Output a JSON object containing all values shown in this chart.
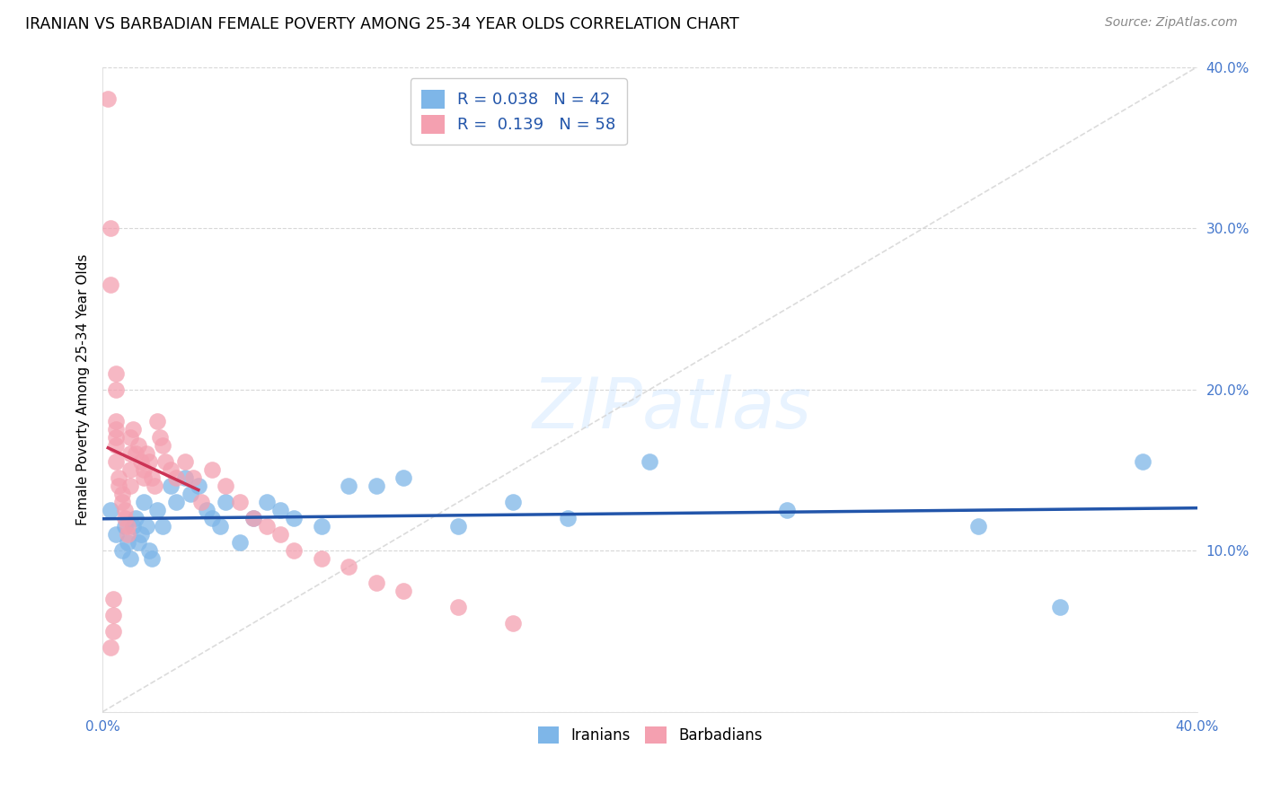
{
  "title": "IRANIAN VS BARBADIAN FEMALE POVERTY AMONG 25-34 YEAR OLDS CORRELATION CHART",
  "source": "Source: ZipAtlas.com",
  "ylabel": "Female Poverty Among 25-34 Year Olds",
  "xlim": [
    0,
    0.4
  ],
  "ylim": [
    0,
    0.4
  ],
  "blue_color": "#7EB6E8",
  "pink_color": "#F4A0B0",
  "blue_line_color": "#2255AA",
  "pink_line_color": "#CC3355",
  "legend_R_blue": "0.038",
  "legend_N_blue": "42",
  "legend_R_pink": "0.139",
  "legend_N_pink": "58",
  "iranians_x": [
    0.003,
    0.005,
    0.007,
    0.008,
    0.009,
    0.01,
    0.011,
    0.012,
    0.013,
    0.014,
    0.015,
    0.016,
    0.017,
    0.018,
    0.02,
    0.022,
    0.025,
    0.027,
    0.03,
    0.032,
    0.035,
    0.038,
    0.04,
    0.043,
    0.045,
    0.05,
    0.055,
    0.06,
    0.065,
    0.07,
    0.08,
    0.09,
    0.1,
    0.11,
    0.13,
    0.15,
    0.17,
    0.2,
    0.25,
    0.32,
    0.35,
    0.38
  ],
  "iranians_y": [
    0.125,
    0.11,
    0.1,
    0.115,
    0.105,
    0.095,
    0.115,
    0.12,
    0.105,
    0.11,
    0.13,
    0.115,
    0.1,
    0.095,
    0.125,
    0.115,
    0.14,
    0.13,
    0.145,
    0.135,
    0.14,
    0.125,
    0.12,
    0.115,
    0.13,
    0.105,
    0.12,
    0.13,
    0.125,
    0.12,
    0.115,
    0.14,
    0.14,
    0.145,
    0.115,
    0.13,
    0.12,
    0.155,
    0.125,
    0.115,
    0.065,
    0.155
  ],
  "barbadians_x": [
    0.002,
    0.003,
    0.003,
    0.003,
    0.004,
    0.004,
    0.004,
    0.005,
    0.005,
    0.005,
    0.005,
    0.005,
    0.005,
    0.005,
    0.006,
    0.006,
    0.007,
    0.007,
    0.008,
    0.008,
    0.009,
    0.009,
    0.01,
    0.01,
    0.01,
    0.01,
    0.011,
    0.012,
    0.013,
    0.014,
    0.015,
    0.015,
    0.016,
    0.017,
    0.018,
    0.019,
    0.02,
    0.021,
    0.022,
    0.023,
    0.025,
    0.027,
    0.03,
    0.033,
    0.036,
    0.04,
    0.045,
    0.05,
    0.055,
    0.06,
    0.065,
    0.07,
    0.08,
    0.09,
    0.1,
    0.11,
    0.13,
    0.15
  ],
  "barbadians_y": [
    0.38,
    0.3,
    0.265,
    0.04,
    0.05,
    0.06,
    0.07,
    0.21,
    0.2,
    0.18,
    0.175,
    0.17,
    0.165,
    0.155,
    0.145,
    0.14,
    0.135,
    0.13,
    0.125,
    0.12,
    0.115,
    0.11,
    0.17,
    0.16,
    0.15,
    0.14,
    0.175,
    0.16,
    0.165,
    0.155,
    0.15,
    0.145,
    0.16,
    0.155,
    0.145,
    0.14,
    0.18,
    0.17,
    0.165,
    0.155,
    0.15,
    0.145,
    0.155,
    0.145,
    0.13,
    0.15,
    0.14,
    0.13,
    0.12,
    0.115,
    0.11,
    0.1,
    0.095,
    0.09,
    0.08,
    0.075,
    0.065,
    0.055
  ]
}
